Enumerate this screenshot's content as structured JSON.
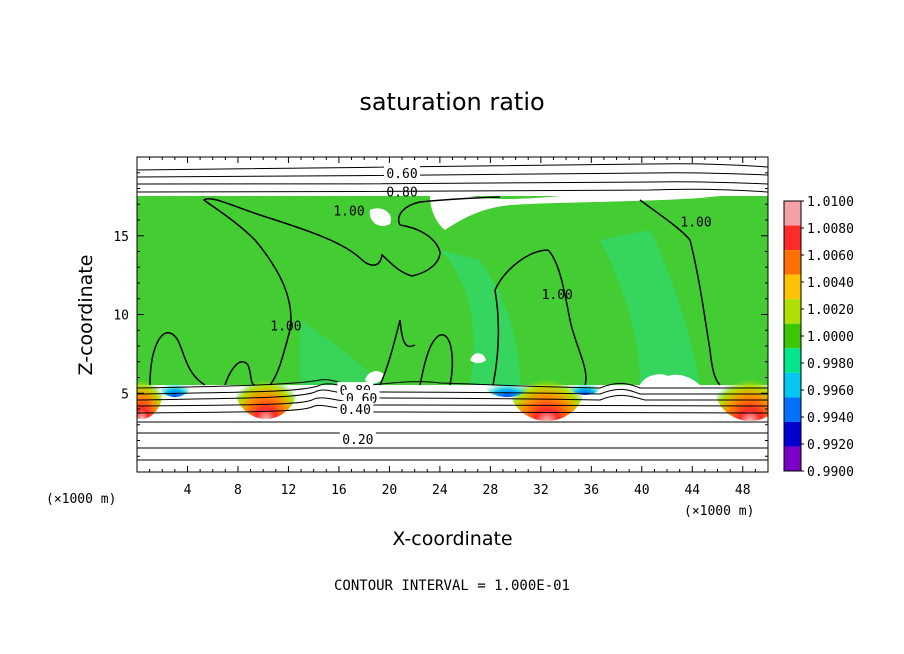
{
  "chart_data": {
    "type": "heatmap",
    "title": "saturation ratio",
    "xlabel": "X-coordinate",
    "ylabel": "Z-coordinate",
    "x_unit": "(×1000 m)",
    "xlim": [
      0,
      50
    ],
    "ylim": [
      0,
      20
    ],
    "x_ticks": [
      4,
      8,
      12,
      16,
      20,
      24,
      28,
      32,
      36,
      40,
      44,
      48
    ],
    "y_ticks": [
      5,
      10,
      15
    ],
    "colorbar": {
      "ticks": [
        "1.0100",
        "1.0080",
        "1.0060",
        "1.0040",
        "1.0020",
        "1.0000",
        "0.9980",
        "0.9960",
        "0.9940",
        "0.9920",
        "0.9900"
      ],
      "colors": [
        "#f4a0a8",
        "#ff2a2a",
        "#ff7000",
        "#ffc200",
        "#aee000",
        "#3cc800",
        "#00e68c",
        "#00c8f0",
        "#0070ff",
        "#0000d0",
        "#7a00c8"
      ]
    },
    "field_background": "#44cc33",
    "contour_labels": [
      {
        "text": "0.60",
        "x": 21.0,
        "z": 19.0
      },
      {
        "text": "0.80",
        "x": 21.0,
        "z": 17.8
      },
      {
        "text": "1.00",
        "x": 16.8,
        "z": 16.6
      },
      {
        "text": "1.00",
        "x": 11.8,
        "z": 9.3
      },
      {
        "text": "1.00",
        "x": 33.3,
        "z": 11.3
      },
      {
        "text": "1.00",
        "x": 44.3,
        "z": 15.9
      },
      {
        "text": "0.80",
        "x": 17.3,
        "z": 5.2
      },
      {
        "text": "0.60",
        "x": 17.8,
        "z": 4.7
      },
      {
        "text": "0.40",
        "x": 17.3,
        "z": 4.0
      },
      {
        "text": "0.20",
        "x": 17.5,
        "z": 2.1
      }
    ],
    "contour_interval_text": "CONTOUR INTERVAL = 1.000E-01"
  }
}
